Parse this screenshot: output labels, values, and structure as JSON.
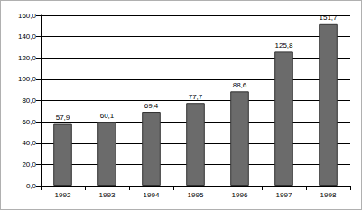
{
  "chart_data": {
    "type": "bar",
    "categories": [
      "1992",
      "1993",
      "1994",
      "1995",
      "1996",
      "1997",
      "1998"
    ],
    "values": [
      57.9,
      60.1,
      69.4,
      77.7,
      88.6,
      125.8,
      151.7
    ],
    "value_labels": [
      "57,9",
      "60,1",
      "69,4",
      "77,7",
      "88,6",
      "125,8",
      "151,7"
    ],
    "color": "#6b6b6b",
    "ylim": [
      0,
      160
    ],
    "yticks": [
      {
        "value": 0,
        "label": "0,0"
      },
      {
        "value": 20,
        "label": "20,0"
      },
      {
        "value": 40,
        "label": "40,0"
      },
      {
        "value": 60,
        "label": "60,0"
      },
      {
        "value": 80,
        "label": "80,0"
      },
      {
        "value": 100,
        "label": "100,0"
      },
      {
        "value": 120,
        "label": "120,0"
      },
      {
        "value": 140,
        "label": "140,0"
      },
      {
        "value": 160,
        "label": "160,0"
      }
    ],
    "grid": true,
    "data_labels": true
  }
}
